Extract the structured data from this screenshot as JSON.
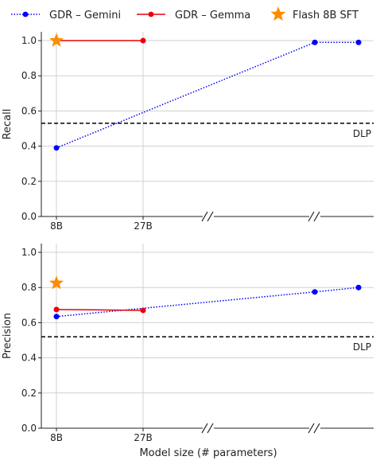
{
  "legend": {
    "items": [
      {
        "label": "GDR – Gemini",
        "color": "#0000ff",
        "marker": "dot",
        "line": "dotted"
      },
      {
        "label": "GDR – Gemma",
        "color": "#e8000b",
        "marker": "dot",
        "line": "solid"
      },
      {
        "label": "Flash 8B SFT",
        "color": "#ff8c00",
        "marker": "star",
        "line": "none"
      }
    ]
  },
  "chart_data": [
    {
      "type": "line",
      "ylabel": "Recall",
      "xlabel": "",
      "ylim": [
        0,
        1.05
      ],
      "yticks": [
        "0.0",
        "0.2",
        "0.4",
        "0.6",
        "0.8",
        "1.0"
      ],
      "xtick_labels": [
        "8B",
        "27B"
      ],
      "axis_break_marks": 2,
      "grid": true,
      "reference_line": {
        "label": "DLP",
        "value": 0.53,
        "style": "dashed",
        "color": "#000000"
      },
      "series": [
        {
          "name": "GDR – Gemini",
          "x": [
            "8B",
            "27B",
            "break1",
            "break2",
            "max"
          ],
          "values": [
            0.39,
            null,
            null,
            0.99,
            0.99
          ],
          "color": "#0000ff"
        },
        {
          "name": "GDR – Gemma",
          "x": [
            "8B",
            "27B"
          ],
          "values": [
            1.0,
            1.0
          ],
          "color": "#e8000b"
        },
        {
          "name": "Flash 8B SFT",
          "x": [
            "8B"
          ],
          "values": [
            1.0
          ],
          "color": "#ff8c00"
        }
      ]
    },
    {
      "type": "line",
      "ylabel": "Precision",
      "xlabel": "Model size (# parameters)",
      "ylim": [
        0,
        1.05
      ],
      "yticks": [
        "0.0",
        "0.2",
        "0.4",
        "0.6",
        "0.8",
        "1.0"
      ],
      "xtick_labels": [
        "8B",
        "27B"
      ],
      "axis_break_marks": 2,
      "grid": true,
      "reference_line": {
        "label": "DLP",
        "value": 0.52,
        "style": "dashed",
        "color": "#000000"
      },
      "series": [
        {
          "name": "GDR – Gemini",
          "x": [
            "8B",
            "27B",
            "break1",
            "break2",
            "max"
          ],
          "values": [
            0.635,
            null,
            null,
            0.775,
            0.8
          ],
          "color": "#0000ff"
        },
        {
          "name": "GDR – Gemma",
          "x": [
            "8B",
            "27B"
          ],
          "values": [
            0.675,
            0.67
          ],
          "color": "#e8000b"
        },
        {
          "name": "Flash 8B SFT",
          "x": [
            "8B"
          ],
          "values": [
            0.825
          ],
          "color": "#ff8c00"
        }
      ]
    }
  ]
}
